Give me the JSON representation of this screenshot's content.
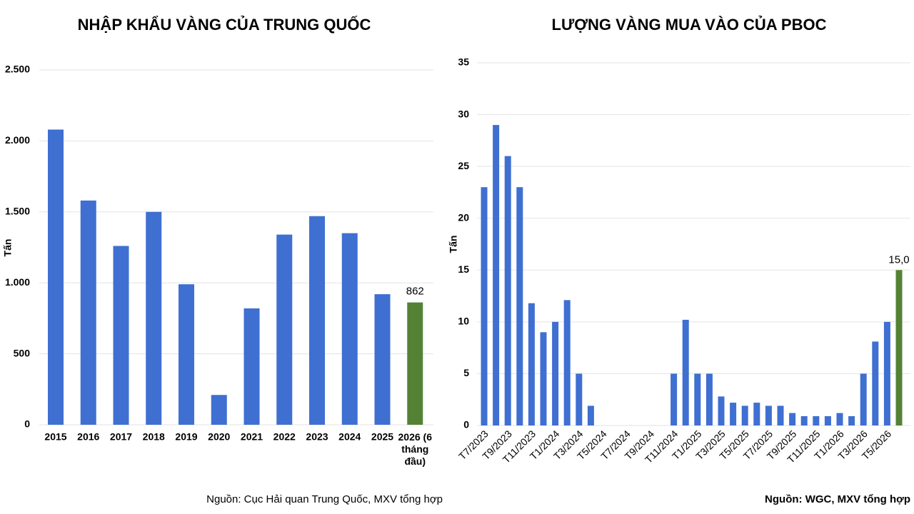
{
  "chart_data": [
    {
      "type": "bar",
      "title": "NHẬP KHẨU VÀNG CỦA TRUNG QUỐC",
      "y_label": "Tấn",
      "categories": [
        "2015",
        "2016",
        "2017",
        "2018",
        "2019",
        "2020",
        "2021",
        "2022",
        "2023",
        "2024",
        "2025",
        "2026 (6 tháng đầu)"
      ],
      "values": [
        2080,
        1580,
        1260,
        1500,
        990,
        210,
        820,
        1340,
        1470,
        1350,
        920,
        862
      ],
      "colors": [
        "#3f6fd1",
        "#3f6fd1",
        "#3f6fd1",
        "#3f6fd1",
        "#3f6fd1",
        "#3f6fd1",
        "#3f6fd1",
        "#3f6fd1",
        "#3f6fd1",
        "#3f6fd1",
        "#3f6fd1",
        "#548235"
      ],
      "labeled": [
        11
      ],
      "ylim": [
        0,
        2500
      ],
      "yticks": [
        0,
        500,
        {
          "value": 1000,
          "label": "1.000"
        },
        {
          "value": 1500,
          "label": "1.500"
        },
        {
          "value": 2000,
          "label": "2.000"
        },
        {
          "value": 2500,
          "label": "2.500"
        }
      ],
      "grid": true,
      "source": "Nguồn:  Cục Hải quan Trung Quốc, MXV tổng hợp"
    },
    {
      "type": "bar",
      "title": "LƯỢNG VÀNG MUA VÀO CỦA PBOC",
      "y_label": "Tấn",
      "categories": [
        "T7/2023",
        null,
        "T9/2023",
        null,
        "T11/2023",
        null,
        "T1/2024",
        null,
        "T3/2024",
        null,
        "T5/2024",
        null,
        "T7/2024",
        null,
        "T9/2024",
        null,
        "T11/2024",
        null,
        "T1/2025",
        null,
        "T3/2025",
        null,
        "T5/2025",
        null,
        "T7/2025",
        null,
        "T9/2025",
        null,
        "T11/2025",
        null,
        "T1/2026",
        null,
        "T3/2026",
        null,
        "T5/2026",
        null
      ],
      "values": [
        23,
        29,
        26,
        23,
        11.8,
        9,
        10,
        12.1,
        5,
        1.9,
        0,
        0,
        0,
        0,
        0,
        0,
        5,
        10.2,
        5,
        5,
        2.8,
        2.2,
        1.9,
        2.2,
        1.9,
        1.9,
        1.2,
        0.9,
        0.9,
        0.9,
        1.2,
        0.9,
        5,
        8.1,
        10,
        15
      ],
      "value_labels": [
        null,
        null,
        null,
        null,
        null,
        null,
        null,
        null,
        null,
        null,
        null,
        null,
        null,
        null,
        null,
        null,
        null,
        null,
        null,
        null,
        null,
        null,
        null,
        null,
        null,
        null,
        null,
        null,
        null,
        null,
        null,
        null,
        null,
        null,
        null,
        "15,0"
      ],
      "color": "#3f6fd1",
      "highlight_color": "#548235",
      "highlight_index": 35,
      "ylim": [
        0,
        35
      ],
      "yticks": [
        0,
        5,
        10,
        15,
        20,
        25,
        30,
        35
      ],
      "grid": true,
      "source": "Nguồn: WGC, MXV tổng hợp"
    }
  ]
}
